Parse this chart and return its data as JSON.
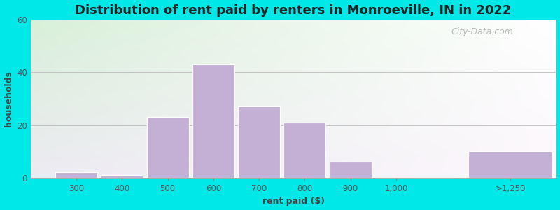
{
  "title": "Distribution of rent paid by renters in Monroeville, IN in 2022",
  "xlabel": "rent paid ($)",
  "ylabel": "households",
  "bar_centers": [
    300,
    400,
    500,
    600,
    700,
    800,
    900,
    1000,
    1250
  ],
  "bar_widths": [
    100,
    100,
    100,
    100,
    100,
    100,
    100,
    100,
    200
  ],
  "values": [
    2,
    1,
    23,
    43,
    27,
    21,
    6,
    0,
    10
  ],
  "xtick_positions": [
    300,
    400,
    500,
    600,
    700,
    800,
    900,
    1000,
    1250
  ],
  "xtick_labels": [
    "300",
    "400",
    "500",
    "600",
    "700",
    "800",
    "900",
    "1,000",
    ">1,250"
  ],
  "bar_color": "#c4b0d5",
  "bar_edge_color": "#ffffff",
  "ylim": [
    0,
    60
  ],
  "xlim": [
    200,
    1350
  ],
  "yticks": [
    0,
    20,
    40,
    60
  ],
  "outer_background": "#00e8e8",
  "title_fontsize": 13,
  "axis_label_fontsize": 9,
  "tick_fontsize": 8.5,
  "watermark_text": "City-Data.com"
}
